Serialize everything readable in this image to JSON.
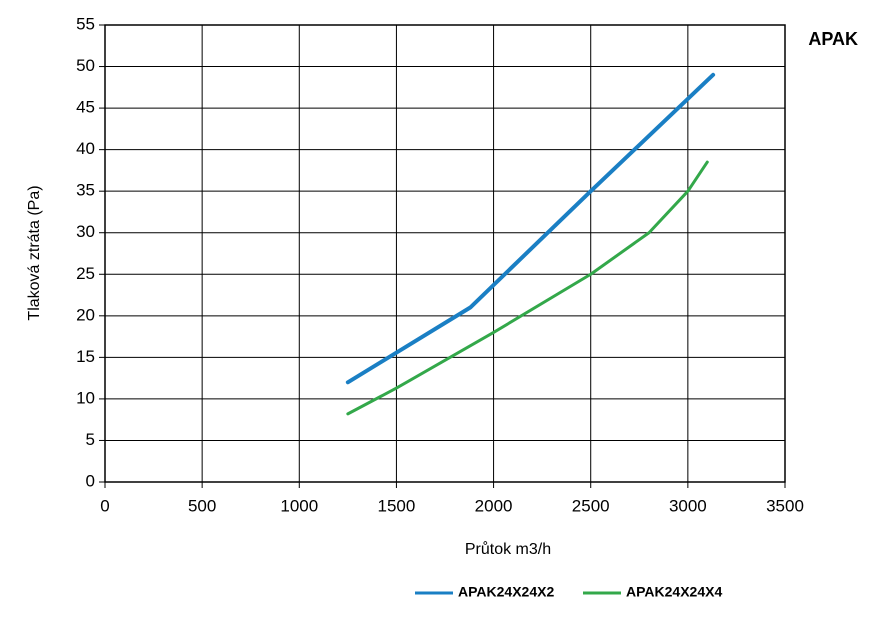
{
  "chart_data": {
    "type": "line",
    "title": "APAK",
    "xlabel": "Průtok m3/h",
    "ylabel": "Tlaková ztráta (Pa)",
    "series": [
      {
        "name": "APAK24X24X2",
        "color": "#1a7fc4",
        "x": [
          1250,
          1880,
          2500,
          3130
        ],
        "values": [
          12,
          21,
          35,
          49
        ]
      },
      {
        "name": "APAK24X24X4",
        "color": "#33a84a",
        "x": [
          1250,
          1500,
          2000,
          2500,
          2800,
          3000,
          3100
        ],
        "values": [
          8.2,
          11.3,
          18,
          25,
          30,
          35,
          38.5
        ]
      }
    ],
    "xlim": [
      0,
      3500
    ],
    "xticks": [
      0,
      500,
      1000,
      1500,
      2000,
      2500,
      3000,
      3500
    ],
    "ylim": [
      0,
      55
    ],
    "yticks": [
      0,
      5,
      10,
      15,
      20,
      25,
      30,
      35,
      40,
      45,
      50,
      55
    ],
    "grid": true,
    "legend": "bottom"
  }
}
